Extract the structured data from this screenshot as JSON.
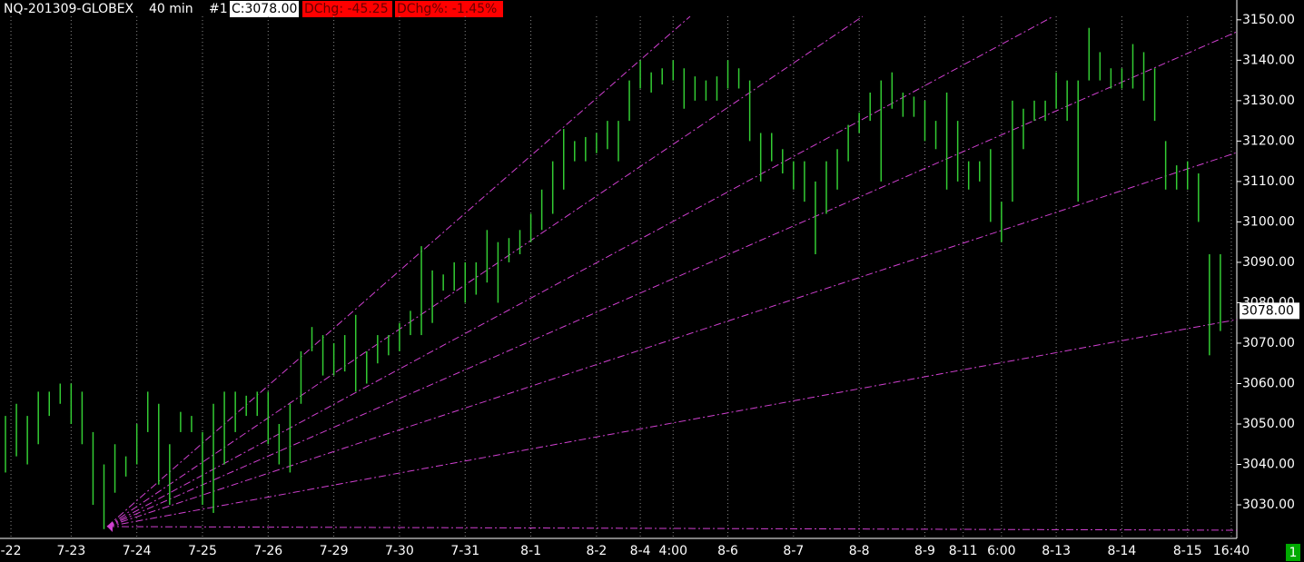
{
  "chart_data": {
    "type": "range-bar",
    "header": {
      "symbol": "NQ-201309-GLOBEX",
      "interval": "40 min",
      "window": "#1",
      "close": "C:3078.00",
      "dchg": "DChg: -45.25",
      "dchg_pct": "DChg%: -1.45%"
    },
    "series": [
      {
        "name": "high",
        "color": "#33cc33",
        "values": [
          3052,
          3055,
          3052,
          3058,
          3058,
          3060,
          3060,
          3058,
          3048,
          3040,
          3045,
          3042,
          3050,
          3058,
          3055,
          3045,
          3053,
          3052,
          3048,
          3055,
          3058,
          3058,
          3057,
          3058,
          3058,
          3050,
          3055,
          3068,
          3074,
          3072,
          3070,
          3072,
          3077,
          3068,
          3072,
          3072,
          3075,
          3078,
          3094,
          3088,
          3087,
          3090,
          3090,
          3090,
          3098,
          3095,
          3096,
          3098,
          3102,
          3108,
          3115,
          3123,
          3120,
          3121,
          3122,
          3125,
          3125,
          3135,
          3140,
          3137,
          3138,
          3140,
          3138,
          3136,
          3135,
          3136,
          3140,
          3138,
          3135,
          3122,
          3122,
          3118,
          3115,
          3115,
          3110,
          3115,
          3118,
          3124,
          3127,
          3132,
          3135,
          3137,
          3132,
          3131,
          3130,
          3125,
          3132,
          3125,
          3115,
          3115,
          3118,
          3105,
          3130,
          3128,
          3130,
          3130,
          3137,
          3135,
          3135,
          3148,
          3142,
          3138,
          3138,
          3144,
          3142,
          3138,
          3120,
          3114,
          3115,
          3112,
          3092,
          3092
        ]
      },
      {
        "name": "low",
        "color": "#33cc33",
        "values": [
          3038,
          3042,
          3040,
          3045,
          3052,
          3055,
          3050,
          3045,
          3030,
          3024,
          3033,
          3037,
          3040,
          3048,
          3035,
          3030,
          3048,
          3048,
          3030,
          3028,
          3040,
          3048,
          3052,
          3052,
          3045,
          3040,
          3038,
          3055,
          3068,
          3062,
          3062,
          3063,
          3058,
          3060,
          3065,
          3067,
          3068,
          3072,
          3072,
          3075,
          3083,
          3083,
          3080,
          3082,
          3085,
          3080,
          3090,
          3092,
          3095,
          3098,
          3102,
          3108,
          3115,
          3115,
          3117,
          3118,
          3115,
          3125,
          3133,
          3132,
          3134,
          3135,
          3128,
          3130,
          3130,
          3130,
          3133,
          3133,
          3120,
          3110,
          3115,
          3112,
          3108,
          3105,
          3092,
          3102,
          3108,
          3115,
          3122,
          3125,
          3110,
          3128,
          3126,
          3126,
          3120,
          3118,
          3108,
          3110,
          3108,
          3110,
          3100,
          3095,
          3105,
          3118,
          3125,
          3125,
          3128,
          3125,
          3105,
          3135,
          3135,
          3133,
          3133,
          3133,
          3130,
          3125,
          3108,
          3108,
          3108,
          3100,
          3067,
          3073
        ]
      }
    ],
    "xlim": [
      0,
      113
    ],
    "xticks": [
      {
        "value": 1,
        "label": "-22"
      },
      {
        "value": 6.5,
        "label": "7-23"
      },
      {
        "value": 12.5,
        "label": "7-24"
      },
      {
        "value": 18.5,
        "label": "7-25"
      },
      {
        "value": 24.5,
        "label": "7-26"
      },
      {
        "value": 30.5,
        "label": "7-29"
      },
      {
        "value": 36.5,
        "label": "7-30"
      },
      {
        "value": 42.5,
        "label": "7-31"
      },
      {
        "value": 48.5,
        "label": "8-1"
      },
      {
        "value": 54.5,
        "label": "8-2"
      },
      {
        "value": 58.5,
        "label": "8-4"
      },
      {
        "value": 61.5,
        "label": "4:00"
      },
      {
        "value": 66.5,
        "label": "8-6"
      },
      {
        "value": 72.5,
        "label": "8-7"
      },
      {
        "value": 78.5,
        "label": "8-8"
      },
      {
        "value": 84.5,
        "label": "8-9"
      },
      {
        "value": 88,
        "label": "8-11"
      },
      {
        "value": 91.5,
        "label": "6:00"
      },
      {
        "value": 96.5,
        "label": "8-13"
      },
      {
        "value": 102.5,
        "label": "8-14"
      },
      {
        "value": 108.5,
        "label": "8-15"
      },
      {
        "value": 112.5,
        "label": "16:40"
      }
    ],
    "ylim": [
      3021.7,
      3154.9
    ],
    "yticks": [
      {
        "value": 3030,
        "label": "3030.00"
      },
      {
        "value": 3040,
        "label": "3040.00"
      },
      {
        "value": 3050,
        "label": "3050.00"
      },
      {
        "value": 3060,
        "label": "3060.00"
      },
      {
        "value": 3070,
        "label": "3070.00"
      },
      {
        "value": 3080,
        "label": "3080.00"
      },
      {
        "value": 3090,
        "label": "3090.00"
      },
      {
        "value": 3100,
        "label": "3100.00"
      },
      {
        "value": 3110,
        "label": "3110.00"
      },
      {
        "value": 3120,
        "label": "3120.00"
      },
      {
        "value": 3130,
        "label": "3130.00"
      },
      {
        "value": 3140,
        "label": "3140.00"
      },
      {
        "value": 3150,
        "label": "3150.00"
      }
    ],
    "last_price": {
      "value": 3078,
      "label": "3078.00"
    },
    "badge": "1"
  }
}
